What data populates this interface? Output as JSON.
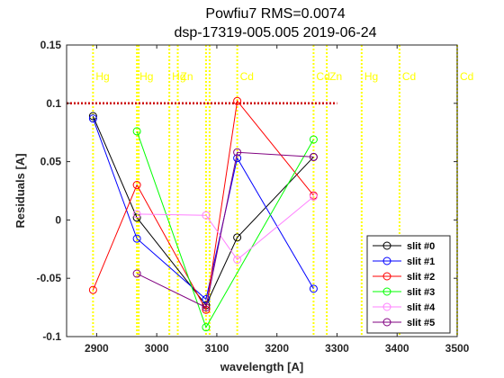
{
  "chart_data": {
    "type": "line",
    "title": "Powfiu7 RMS=0.0074",
    "subtitle": "dsp-17319-005.005  2019-06-24",
    "xlabel": "wavelength [A]",
    "ylabel": "Residuals  [A]",
    "xlim": [
      2850,
      3500
    ],
    "ylim": [
      -0.1,
      0.15
    ],
    "xticks": [
      "2900",
      "3000",
      "3100",
      "3200",
      "3300",
      "3400",
      "3500"
    ],
    "yticks": [
      "-0.1",
      "-0.05",
      "0",
      "0.05",
      "0.1",
      "0.15"
    ],
    "grid": false,
    "legend_position": "bottom-right",
    "threshold_line": {
      "y": 0.1,
      "x_end": 3300,
      "color": "#cc0000"
    },
    "reference_lines": [
      {
        "x": 2894,
        "label": "Hg"
      },
      {
        "x": 2967,
        "label": "Hg"
      },
      {
        "x": 2970,
        "label": ""
      },
      {
        "x": 3021,
        "label": "Hg"
      },
      {
        "x": 3035,
        "label": "Zn"
      },
      {
        "x": 3082,
        "label": ""
      },
      {
        "x": 3088,
        "label": ""
      },
      {
        "x": 3134,
        "label": "Cd"
      },
      {
        "x": 3261,
        "label": "Cd"
      },
      {
        "x": 3283,
        "label": "Zn"
      },
      {
        "x": 3341,
        "label": "Hg"
      },
      {
        "x": 3404,
        "label": "Cd"
      },
      {
        "x": 3500,
        "label": "Cd"
      }
    ],
    "series": [
      {
        "name": "slit #0",
        "color": "#000000",
        "x": [
          2894,
          2967,
          3082,
          3134,
          3261
        ],
        "y": [
          0.089,
          0.002,
          -0.073,
          -0.015,
          0.054
        ]
      },
      {
        "name": "slit #1",
        "color": "#0000ff",
        "x": [
          2894,
          2967,
          3082,
          3134,
          3261
        ],
        "y": [
          0.087,
          -0.016,
          -0.068,
          0.053,
          -0.059
        ]
      },
      {
        "name": "slit #2",
        "color": "#ff0000",
        "x": [
          2894,
          2967,
          3082,
          3134,
          3261
        ],
        "y": [
          -0.06,
          0.03,
          -0.077,
          0.102,
          0.021
        ]
      },
      {
        "name": "slit #3",
        "color": "#00ff00",
        "x": [
          2967,
          3082,
          3261
        ],
        "y": [
          0.076,
          -0.092,
          0.069
        ]
      },
      {
        "name": "slit #4",
        "color": "#ff80ff",
        "x": [
          2967,
          3082,
          3134,
          3261
        ],
        "y": [
          0.005,
          0.004,
          -0.034,
          0.02
        ]
      },
      {
        "name": "slit #5",
        "color": "#800080",
        "x": [
          2967,
          3082,
          3134,
          3261
        ],
        "y": [
          -0.046,
          -0.075,
          0.058,
          0.054
        ]
      }
    ]
  }
}
